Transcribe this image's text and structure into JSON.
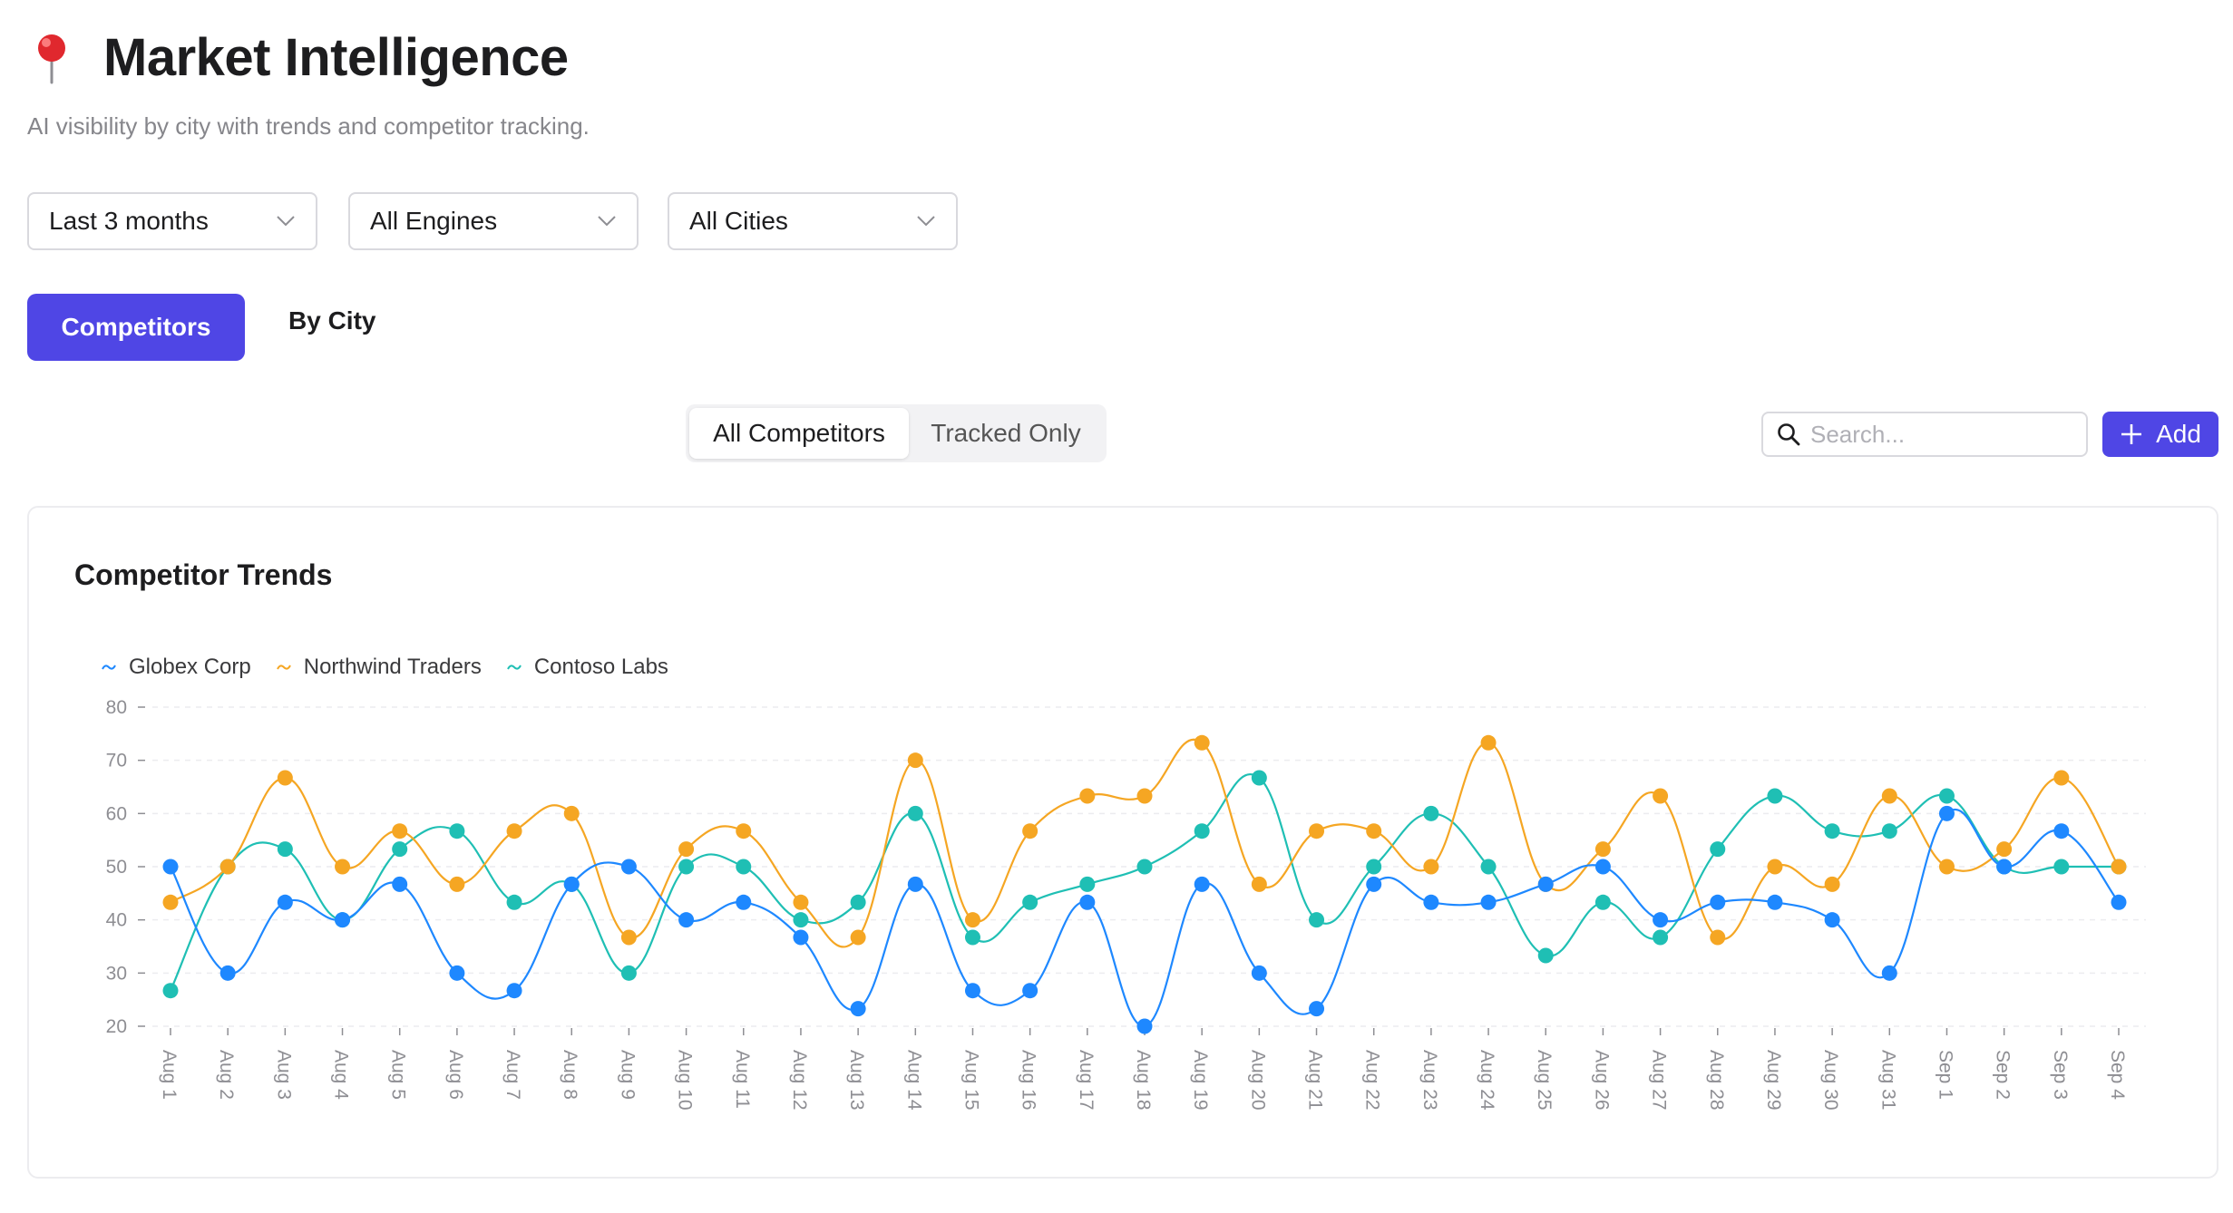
{
  "header": {
    "title": "Market Intelligence",
    "subtitle": "AI visibility by city with trends and competitor tracking.",
    "icon": "pushpin-icon"
  },
  "filters": {
    "period": "Last 3 months",
    "engines": "All Engines",
    "cities": "All Cities"
  },
  "tabs": {
    "primary": "Competitors",
    "secondary": "By City"
  },
  "segment": {
    "all": "All Competitors",
    "tracked": "Tracked Only"
  },
  "search": {
    "placeholder": "Search..."
  },
  "add_button": {
    "label": "Add"
  },
  "card": {
    "title": "Competitor Trends"
  },
  "colors": {
    "accent": "#4f46e5",
    "globex": "#1e88ff",
    "northwind": "#f5a623",
    "contoso": "#1fbfb4"
  },
  "chart_data": {
    "type": "line",
    "title": "",
    "xlabel": "",
    "ylabel": "",
    "ylim": [
      20,
      80
    ],
    "yticks": [
      20,
      30,
      40,
      50,
      60,
      70,
      80
    ],
    "grid": true,
    "legend_position": "top-left",
    "x": [
      "Aug 1",
      "Aug 2",
      "Aug 3",
      "Aug 4",
      "Aug 5",
      "Aug 6",
      "Aug 7",
      "Aug 8",
      "Aug 9",
      "Aug 10",
      "Aug 11",
      "Aug 12",
      "Aug 13",
      "Aug 14",
      "Aug 15",
      "Aug 16",
      "Aug 17",
      "Aug 18",
      "Aug 19",
      "Aug 20",
      "Aug 21",
      "Aug 22",
      "Aug 23",
      "Aug 24",
      "Aug 25",
      "Aug 26",
      "Aug 27",
      "Aug 28",
      "Aug 29",
      "Aug 30",
      "Aug 31",
      "Sep 1",
      "Sep 2",
      "Sep 3",
      "Sep 4"
    ],
    "series": [
      {
        "name": "Globex Corp",
        "color": "#1e88ff",
        "values": [
          50,
          30,
          43.3,
          40,
          46.7,
          30,
          26.7,
          46.7,
          50,
          40,
          43.3,
          36.7,
          23.3,
          46.7,
          26.7,
          26.7,
          43.3,
          20,
          46.7,
          30,
          23.3,
          46.7,
          43.3,
          43.3,
          46.7,
          50,
          40,
          43.3,
          43.3,
          40,
          30,
          60,
          50,
          56.7,
          43.3
        ]
      },
      {
        "name": "Northwind Traders",
        "color": "#f5a623",
        "values": [
          43.3,
          50,
          66.7,
          50,
          56.7,
          46.7,
          56.7,
          60,
          36.7,
          53.3,
          56.7,
          43.3,
          36.7,
          70,
          40,
          56.7,
          63.3,
          63.3,
          73.3,
          46.7,
          56.7,
          56.7,
          50,
          73.3,
          46.7,
          53.3,
          63.3,
          36.7,
          50,
          46.7,
          63.3,
          50,
          53.3,
          66.7,
          50
        ]
      },
      {
        "name": "Contoso Labs",
        "color": "#1fbfb4",
        "values": [
          26.7,
          50,
          53.3,
          40,
          53.3,
          56.7,
          43.3,
          46.7,
          30,
          50,
          50,
          40,
          43.3,
          60,
          36.7,
          43.3,
          46.7,
          50,
          56.7,
          66.7,
          40,
          50,
          60,
          50,
          33.3,
          43.3,
          36.7,
          53.3,
          63.3,
          56.7,
          56.7,
          63.3,
          50,
          50,
          50
        ]
      }
    ]
  }
}
